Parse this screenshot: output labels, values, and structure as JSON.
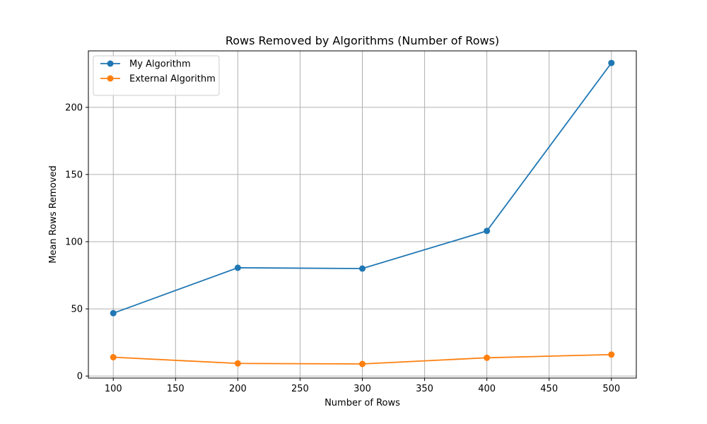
{
  "chart_data": {
    "type": "line",
    "title": "Rows Removed by Algorithms (Number of Rows)",
    "xlabel": "Number of Rows",
    "ylabel": "Mean Rows Removed",
    "x": [
      100,
      200,
      300,
      400,
      500
    ],
    "xlim": [
      80,
      520
    ],
    "ylim": [
      -1.5,
      242
    ],
    "xticks": [
      100,
      150,
      200,
      250,
      300,
      350,
      400,
      450,
      500
    ],
    "yticks": [
      0,
      50,
      100,
      150,
      200
    ],
    "grid": true,
    "legend_position": "upper-left",
    "series": [
      {
        "name": "My Algorithm",
        "color": "#1f77b4",
        "marker": "circle",
        "values": [
          46.8,
          80.6,
          80.0,
          108.0,
          233.0
        ]
      },
      {
        "name": "External Algorithm",
        "color": "#ff7f0e",
        "marker": "circle",
        "values": [
          14.0,
          9.4,
          9.0,
          13.6,
          16.0
        ]
      }
    ]
  }
}
